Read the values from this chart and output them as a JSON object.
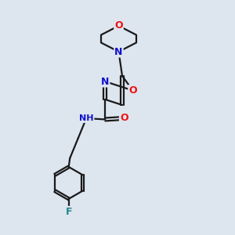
{
  "background_color": "#dde5ef",
  "bond_color": "#1a1a1a",
  "atom_colors": {
    "O": "#ee1111",
    "N": "#1111cc",
    "F": "#228888",
    "C": "#1a1a1a",
    "H": "#555555"
  },
  "fig_width": 3.0,
  "fig_height": 3.0,
  "dpi": 100,
  "xlim": [
    0,
    10
  ],
  "ylim": [
    0,
    10
  ],
  "bond_lw": 1.6,
  "double_sep": 0.13,
  "font_size_atom": 9,
  "font_size_small": 8.0
}
